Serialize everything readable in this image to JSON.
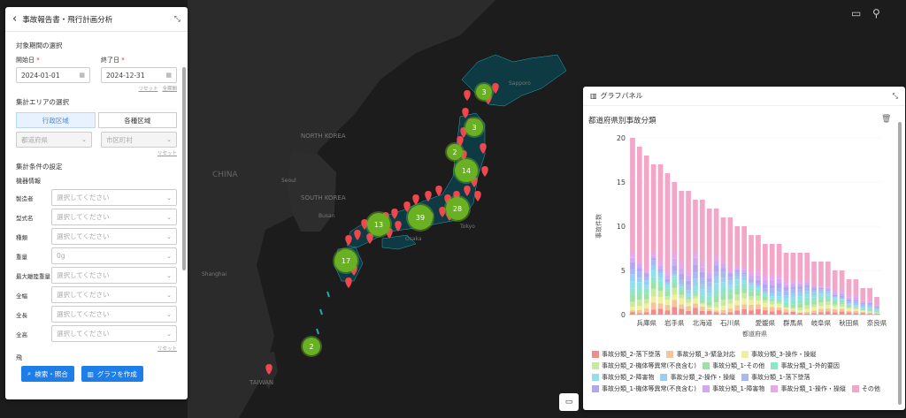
{
  "map": {
    "labels": [
      "NORTH KOREA",
      "SOUTH KOREA",
      "Seoul",
      "Shanghai",
      "Busan",
      "Tokyo",
      "Osaka",
      "Sapporo",
      "TAIWAN",
      "CHINA"
    ],
    "clusters": [
      "3",
      "3",
      "2",
      "14",
      "39",
      "28",
      "13",
      "17",
      "2"
    ],
    "colors": {
      "land": "#2e2e2e",
      "sea": "#1b1b1b",
      "cluster": "#6ab023",
      "pin": "#f0474f",
      "japan": "#0e3a44"
    }
  },
  "left_panel": {
    "title": "事故報告書・飛行計画分析",
    "period": {
      "section_label": "対象期間の選択",
      "start_label": "開始日",
      "end_label": "終了日",
      "required_mark": "*",
      "start_value": "2024-01-01",
      "end_value": "2024-12-31",
      "reset": "リセット",
      "all_period": "全期間"
    },
    "area": {
      "section_label": "集計エリアの選択",
      "tab_admin": "行政区域",
      "tab_each": "各種区域",
      "pref_placeholder": "都道府県",
      "city_placeholder": "市区町村",
      "reset": "リセット"
    },
    "conditions": {
      "section_label": "集計条件の設定",
      "sub_label": "機器情報",
      "fields": [
        {
          "label": "製造者",
          "placeholder": "選択してください"
        },
        {
          "label": "型式名",
          "placeholder": "選択してください"
        },
        {
          "label": "種類",
          "placeholder": "選択してください"
        },
        {
          "label": "重量",
          "placeholder": "0g"
        },
        {
          "label": "最大離陸重量",
          "placeholder": "選択してください"
        },
        {
          "label": "全幅",
          "placeholder": "選択してください"
        },
        {
          "label": "全長",
          "placeholder": "選択してください"
        },
        {
          "label": "全高",
          "placeholder": "選択してください"
        }
      ],
      "reset": "リセット",
      "truncated_label": "飛"
    },
    "buttons": {
      "search": "検索・照合",
      "graph": "グラフを作成"
    }
  },
  "graph_panel": {
    "title": "グラフパネル",
    "chart_title": "都道府県別事故分類"
  },
  "chart_data": {
    "type": "bar",
    "stacked": true,
    "title": "都道府県別事故分類",
    "xlabel": "都道府県",
    "ylabel": "事故件数",
    "ylim": [
      0,
      20
    ],
    "yticks": [
      0,
      5,
      10,
      15,
      20
    ],
    "x_tick_labels": [
      "兵庫県",
      "岩手県",
      "北海道",
      "石川県",
      "愛媛県",
      "群馬県",
      "岐阜県",
      "秋田県",
      "奈良県"
    ],
    "totals": [
      20,
      19,
      18,
      17,
      17,
      16,
      15,
      14,
      14,
      13,
      13,
      12,
      12,
      11,
      11,
      10,
      10,
      9,
      9,
      8,
      8,
      8,
      7,
      7,
      7,
      7,
      6,
      6,
      6,
      5,
      5,
      4,
      4,
      3,
      3,
      2
    ],
    "series": [
      {
        "name": "事故分類_2-落下墜落",
        "color": "#f08c8c"
      },
      {
        "name": "事故分類_3-緊急対応",
        "color": "#f5c49a"
      },
      {
        "name": "事故分類_3-操作・操縦",
        "color": "#eef0a0"
      },
      {
        "name": "事故分類_2-機体等異常(不良含む)",
        "color": "#c8eaa0"
      },
      {
        "name": "事故分類_1-その他",
        "color": "#9ee0a8"
      },
      {
        "name": "事故分類_1-外的要因",
        "color": "#8ee6c8"
      },
      {
        "name": "事故分類_2-障害物",
        "color": "#90e0ea"
      },
      {
        "name": "事故分類_2-操作・操縦",
        "color": "#98cef0"
      },
      {
        "name": "事故分類_1-落下墜落",
        "color": "#a8b8f0"
      },
      {
        "name": "事故分類_1-機体等異常(不良含む)",
        "color": "#b4a6ee"
      },
      {
        "name": "事故分類_1-障害物",
        "color": "#d2a8f0"
      },
      {
        "name": "事故分類_1-操作・操縦",
        "color": "#e8a8e8"
      },
      {
        "name": "その他",
        "color": "#f4a6c8"
      }
    ]
  }
}
